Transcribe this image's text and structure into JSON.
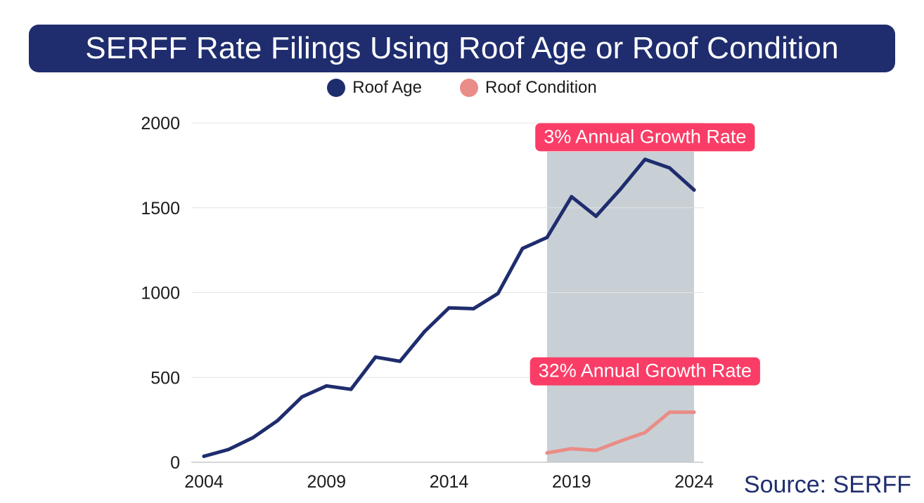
{
  "chart_data": {
    "type": "line",
    "title": "SERFF Rate Filings Using Roof Age or Roof Condition",
    "xlabel": "",
    "ylabel": "",
    "xlim": [
      2004,
      2024
    ],
    "ylim": [
      0,
      2000
    ],
    "x_ticks": [
      2004,
      2009,
      2014,
      2019,
      2024
    ],
    "y_ticks": [
      0,
      500,
      1000,
      1500,
      2000
    ],
    "grid": true,
    "legend_position": "top-center",
    "series": [
      {
        "name": "Roof Age",
        "color": "#1f2d6e",
        "x": [
          2004,
          2005,
          2006,
          2007,
          2008,
          2009,
          2010,
          2011,
          2012,
          2013,
          2014,
          2015,
          2016,
          2017,
          2018,
          2019,
          2020,
          2021,
          2022,
          2023,
          2024
        ],
        "values": [
          35,
          75,
          145,
          245,
          385,
          450,
          430,
          620,
          595,
          770,
          910,
          905,
          995,
          1260,
          1325,
          1565,
          1450,
          1610,
          1785,
          1735,
          1605
        ]
      },
      {
        "name": "Roof Condition",
        "color": "#ea8c87",
        "x": [
          2018,
          2019,
          2020,
          2021,
          2022,
          2023,
          2024
        ],
        "values": [
          55,
          80,
          70,
          125,
          175,
          295,
          295
        ]
      }
    ],
    "highlight_range": [
      2018,
      2024
    ],
    "highlight_color": "#c8d0d6",
    "annotations": [
      {
        "text": "3% Annual Growth Rate",
        "x": 2022,
        "y": 1920
      },
      {
        "text": "32% Annual Growth Rate",
        "x": 2022,
        "y": 540
      }
    ],
    "annotation_color": "#fa3d66"
  },
  "source_text": "Source: SERFF"
}
